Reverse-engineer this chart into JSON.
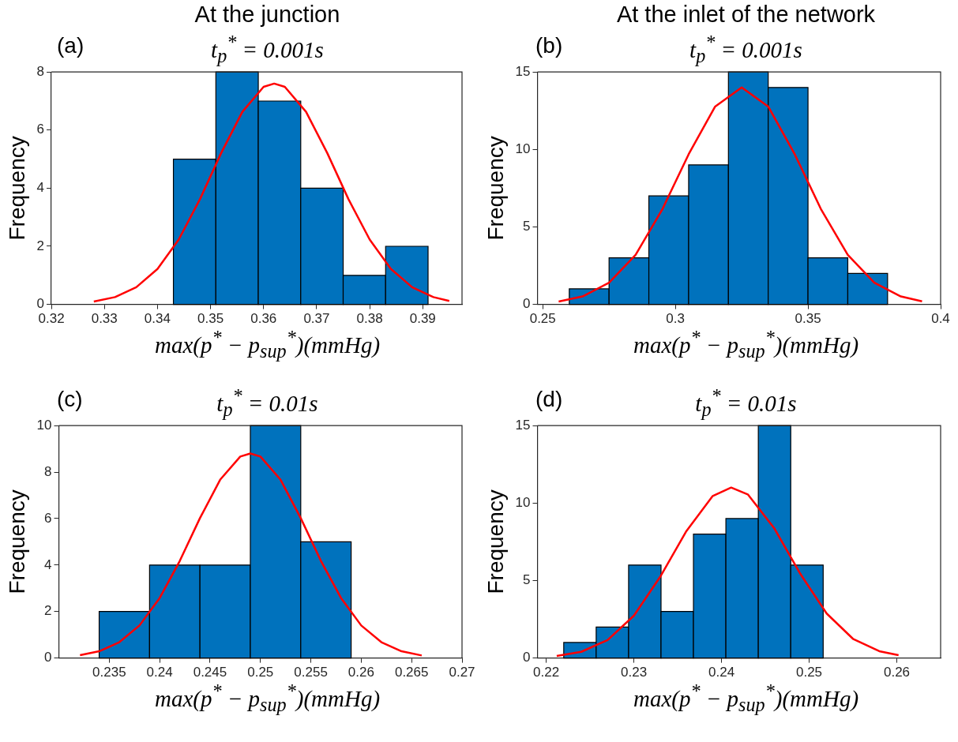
{
  "chart_data": [
    {
      "type": "histogram",
      "title": "At the junction",
      "subtitle": "t$_{p}$$^{*}$ = 0.001s",
      "annotations": [
        "(a)"
      ],
      "xlabel": "max(p$^{*}$ − p$_{sup}$$^{*}$)(mmHg)",
      "ylabel": "Frequency",
      "xlim": [
        0.32,
        0.3974
      ],
      "xticks": [
        0.32,
        0.33,
        0.34,
        0.35,
        0.36,
        0.37,
        0.38,
        0.39
      ],
      "ylim": [
        0,
        8
      ],
      "yticks": [
        0,
        2,
        4,
        6,
        8
      ],
      "series": [
        {
          "color": "#0072bd",
          "bins": [
            0.343,
            0.351,
            0.359,
            0.367,
            0.375,
            0.383,
            0.391
          ],
          "values": [
            5,
            8,
            7,
            4,
            1,
            2
          ]
        },
        {
          "type": "line",
          "color": "#ff0000",
          "x": [
            0.328,
            0.332,
            0.336,
            0.34,
            0.344,
            0.348,
            0.352,
            0.356,
            0.36,
            0.362,
            0.364,
            0.368,
            0.372,
            0.376,
            0.38,
            0.384,
            0.388,
            0.392,
            0.395
          ],
          "values": [
            0.1,
            0.25,
            0.59,
            1.22,
            2.23,
            3.62,
            5.21,
            6.63,
            7.49,
            7.6,
            7.49,
            6.63,
            5.21,
            3.62,
            2.23,
            1.22,
            0.59,
            0.25,
            0.12
          ]
        }
      ]
    },
    {
      "type": "histogram",
      "title": "At the inlet of the network",
      "subtitle": "t$_{p}$$^{*}$ = 0.001s",
      "annotations": [
        "(b)"
      ],
      "xlabel": "max(p$^{*}$ − p$_{sup}$$^{*}$)(mmHg)",
      "ylabel": "Frequency",
      "xlim": [
        0.248,
        0.4
      ],
      "xticks": [
        0.25,
        0.3,
        0.35,
        0.4
      ],
      "ylim": [
        0,
        15
      ],
      "yticks": [
        0,
        5,
        10,
        15
      ],
      "series": [
        {
          "color": "#0072bd",
          "bins": [
            0.26,
            0.275,
            0.29,
            0.305,
            0.32,
            0.335,
            0.35,
            0.365,
            0.38
          ],
          "values": [
            1,
            3,
            7,
            9,
            15,
            14,
            3,
            2
          ]
        },
        {
          "type": "line",
          "color": "#ff0000",
          "x": [
            0.256,
            0.265,
            0.275,
            0.285,
            0.295,
            0.305,
            0.315,
            0.325,
            0.335,
            0.345,
            0.355,
            0.365,
            0.375,
            0.385,
            0.393
          ],
          "values": [
            0.18,
            0.51,
            1.4,
            3.2,
            6.11,
            9.69,
            12.77,
            14,
            12.77,
            9.69,
            6.11,
            3.2,
            1.4,
            0.51,
            0.2
          ]
        }
      ]
    },
    {
      "type": "histogram",
      "subtitle": "t$_{p}$$^{*}$ = 0.01s",
      "annotations": [
        "(c)"
      ],
      "xlabel": "max(p$^{*}$ − p$_{sup}$$^{*}$)(mmHg)",
      "ylabel": "Frequency",
      "xlim": [
        0.23,
        0.27
      ],
      "xticks": [
        0.235,
        0.24,
        0.245,
        0.25,
        0.255,
        0.26,
        0.265,
        0.27
      ],
      "ylim": [
        0,
        10
      ],
      "yticks": [
        0,
        2,
        4,
        6,
        8,
        10
      ],
      "series": [
        {
          "color": "#0072bd",
          "bins": [
            0.234,
            0.239,
            0.244,
            0.249,
            0.254,
            0.259
          ],
          "values": [
            2,
            4,
            4,
            10,
            5
          ]
        },
        {
          "type": "line",
          "color": "#ff0000",
          "x": [
            0.2321,
            0.234,
            0.236,
            0.238,
            0.24,
            0.242,
            0.244,
            0.246,
            0.248,
            0.249,
            0.25,
            0.252,
            0.254,
            0.256,
            0.258,
            0.26,
            0.262,
            0.264,
            0.266
          ],
          "values": [
            0.12,
            0.29,
            0.68,
            1.4,
            2.58,
            4.18,
            6.02,
            7.67,
            8.67,
            8.8,
            8.67,
            7.67,
            6.02,
            4.18,
            2.58,
            1.4,
            0.68,
            0.29,
            0.11
          ]
        }
      ]
    },
    {
      "type": "histogram",
      "subtitle": "t$_{p}$$^{*}$ = 0.01s",
      "annotations": [
        "(d)"
      ],
      "xlabel": "max(p$^{*}$ − p$_{sup}$$^{*}$)(mmHg)",
      "ylabel": "Frequency",
      "xlim": [
        0.219,
        0.265
      ],
      "xticks": [
        0.22,
        0.23,
        0.24,
        0.25,
        0.26
      ],
      "ylim": [
        0,
        15
      ],
      "yticks": [
        0,
        5,
        10,
        15
      ],
      "series": [
        {
          "color": "#0072bd",
          "bins": [
            0.222,
            0.2257,
            0.2294,
            0.2331,
            0.2368,
            0.2405,
            0.2442,
            0.2479,
            0.2516
          ],
          "values": [
            1,
            2,
            6,
            3,
            8,
            9,
            15,
            6
          ]
        },
        {
          "type": "line",
          "color": "#ff0000",
          "x": [
            0.2212,
            0.224,
            0.227,
            0.23,
            0.233,
            0.236,
            0.239,
            0.2411,
            0.243,
            0.246,
            0.249,
            0.252,
            0.255,
            0.258,
            0.2602
          ],
          "values": [
            0.13,
            0.4,
            1.16,
            2.73,
            5.24,
            8.2,
            10.46,
            11,
            10.56,
            8.39,
            5.43,
            2.87,
            1.24,
            0.44,
            0.18
          ]
        }
      ]
    }
  ]
}
